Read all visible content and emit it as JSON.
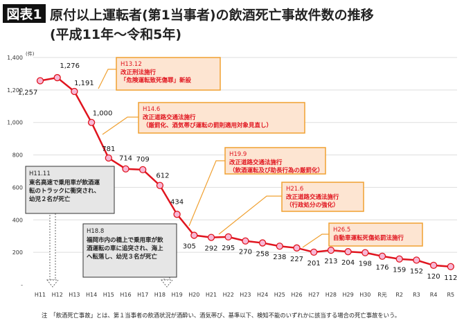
{
  "header": {
    "badge": "図表1",
    "title_line1": "原付以上運転者(第1当事者)の飲酒死亡事故件数の推移",
    "title_line2": "(平成11年～令和5年)"
  },
  "chart_data": {
    "type": "line",
    "title": "原付以上運転者(第1当事者)の飲酒死亡事故件数の推移 (平成11年～令和5年)",
    "ylabel": "(件)",
    "ylim": [
      0,
      1400
    ],
    "yticks": [
      0,
      200,
      400,
      600,
      800,
      1000,
      1200,
      1400
    ],
    "ytick_labels": [
      "-",
      "200",
      "400",
      "600",
      "800",
      "1,000",
      "1,200",
      "1,400"
    ],
    "grid": true,
    "categories": [
      "H11",
      "H12",
      "H13",
      "H14",
      "H15",
      "H16",
      "H17",
      "H18",
      "H19",
      "H20",
      "H21",
      "H22",
      "H23",
      "H24",
      "H25",
      "H26",
      "H27",
      "H28",
      "H29",
      "H30",
      "R元",
      "R2",
      "R3",
      "R4",
      "R5"
    ],
    "values": [
      1257,
      1276,
      1191,
      1000,
      781,
      714,
      709,
      612,
      434,
      305,
      292,
      295,
      270,
      258,
      238,
      227,
      201,
      213,
      204,
      198,
      176,
      159,
      152,
      120,
      112
    ],
    "value_labels": [
      "1,257",
      "1,276",
      "1,191",
      "1,000",
      "781",
      "714",
      "709",
      "612",
      "434",
      "305",
      "292",
      "295",
      "270",
      "258",
      "238",
      "227",
      "201",
      "213",
      "204",
      "198",
      "176",
      "159",
      "152",
      "120",
      "112"
    ],
    "colors": {
      "line": "#e0141e",
      "marker": "#f7b8d6",
      "law_box": "#fde5d2",
      "law_border": "#f0a030",
      "law_text": "#e0141e",
      "event_box": "#e6e6e6"
    },
    "law_annotations": [
      {
        "date": "H13.12",
        "lines": [
          "改正刑法施行",
          "「危険運転致死傷罪」新設"
        ]
      },
      {
        "date": "H14.6",
        "lines": [
          "改正道路交通法施行",
          "（厳罰化、酒気帯び運転の罰則適用対象見直し）"
        ]
      },
      {
        "date": "H19.9",
        "lines": [
          "改正道路交通法施行",
          "（飲酒運転及び助長行為の厳罰化）"
        ]
      },
      {
        "date": "H21.6",
        "lines": [
          "改正道路交通法施行",
          "（行政処分の強化）"
        ]
      },
      {
        "date": "H26.5",
        "lines": [
          "自動車運転死傷処罰法施行"
        ]
      }
    ],
    "event_annotations": [
      {
        "date": "H11.11",
        "lines": [
          "東名高速で乗用車が飲酒運",
          "転のトラックに衝突され、",
          "幼児２名が死亡"
        ]
      },
      {
        "date": "H18.8",
        "lines": [
          "福岡市内の橋上で乗用車が飲",
          "酒運転の車に追突され、海上",
          "へ転落し、幼児３名が死亡"
        ]
      }
    ]
  },
  "footnote": "注　「飲酒死亡事故」とは、第１当事者の飲酒状況が酒酔い、酒気帯び、基準以下、検知不能のいずれかに該当する場合の死亡事故をいう。"
}
